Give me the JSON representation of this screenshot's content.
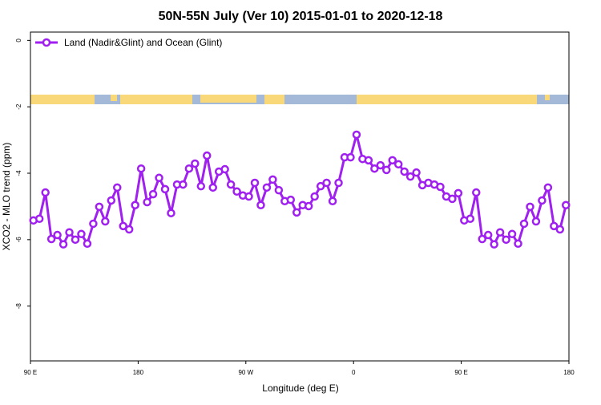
{
  "chart_data": {
    "type": "line",
    "title": "50N-55N July (Ver 10)   2015-01-01 to 2020-12-18",
    "x_label": "Longitude (deg E)",
    "y_label": "XCO2 - MLO trend (ppm)",
    "xlim": [
      90,
      540
    ],
    "ylim": [
      -9.65,
      0.25
    ],
    "xticks": [
      {
        "value": 90,
        "label": "90 E"
      },
      {
        "value": 180,
        "label": "180"
      },
      {
        "value": 270,
        "label": "90 W"
      },
      {
        "value": 360,
        "label": "0"
      },
      {
        "value": 450,
        "label": "90 E"
      },
      {
        "value": 540,
        "label": "180"
      }
    ],
    "yticks": [
      0,
      -2,
      -4,
      -6,
      -8
    ],
    "legend": "top-left",
    "x": [
      92.5,
      97.5,
      102.5,
      107.5,
      112.5,
      117.5,
      122.5,
      127.5,
      132.5,
      137.5,
      142.5,
      147.5,
      152.5,
      157.5,
      162.5,
      167.5,
      172.5,
      177.5,
      182.5,
      187.5,
      192.5,
      197.5,
      202.5,
      207.5,
      212.5,
      217.5,
      222.5,
      227.5,
      232.5,
      237.5,
      242.5,
      247.5,
      252.5,
      257.5,
      262.5,
      267.5,
      272.5,
      277.5,
      282.5,
      287.5,
      292.5,
      297.5,
      302.5,
      307.5,
      312.5,
      317.5,
      322.5,
      327.5,
      332.5,
      337.5,
      342.5,
      347.5,
      352.5,
      357.5,
      362.5,
      367.5,
      372.5,
      377.5,
      382.5,
      387.5,
      392.5,
      397.5,
      402.5,
      407.5,
      412.5,
      417.5,
      422.5,
      427.5,
      432.5,
      437.5,
      442.5,
      447.5,
      452.5,
      457.5,
      462.5,
      467.5,
      472.5,
      477.5,
      482.5,
      487.5,
      492.5,
      497.5,
      502.5,
      507.5,
      512.5,
      517.5,
      522.5,
      527.5,
      532.5,
      537.5
    ],
    "series": [
      {
        "name": "Land (Nadir&Glint) and Ocean (Glint)",
        "color": "#a020f0",
        "values": [
          -5.42,
          -5.37,
          -4.58,
          -5.98,
          -5.86,
          -6.14,
          -5.78,
          -6.0,
          -5.83,
          -6.12,
          -5.52,
          -5.01,
          -5.45,
          -4.82,
          -4.43,
          -5.59,
          -5.69,
          -4.96,
          -3.86,
          -4.87,
          -4.63,
          -4.14,
          -4.48,
          -5.2,
          -4.34,
          -4.34,
          -3.86,
          -3.71,
          -4.39,
          -3.47,
          -4.43,
          -3.95,
          -3.88,
          -4.34,
          -4.55,
          -4.67,
          -4.7,
          -4.29,
          -4.96,
          -4.43,
          -4.19,
          -4.51,
          -4.84,
          -4.8,
          -5.18,
          -4.96,
          -4.99,
          -4.7,
          -4.39,
          -4.29,
          -4.84,
          -4.29,
          -3.52,
          -3.52,
          -2.84,
          -3.57,
          -3.61,
          -3.86,
          -3.76,
          -3.9,
          -3.61,
          -3.73,
          -3.95,
          -4.1,
          -3.98,
          -4.36,
          -4.29,
          -4.34,
          -4.41,
          -4.7,
          -4.77,
          -4.6,
          -5.42,
          -5.37,
          -4.58,
          -5.98,
          -5.86,
          -6.14,
          -5.78,
          -6.0,
          -5.83,
          -6.12,
          -5.52,
          -5.01,
          -5.45,
          -4.82,
          -4.43,
          -5.59,
          -5.69,
          -4.96
        ]
      }
    ]
  }
}
